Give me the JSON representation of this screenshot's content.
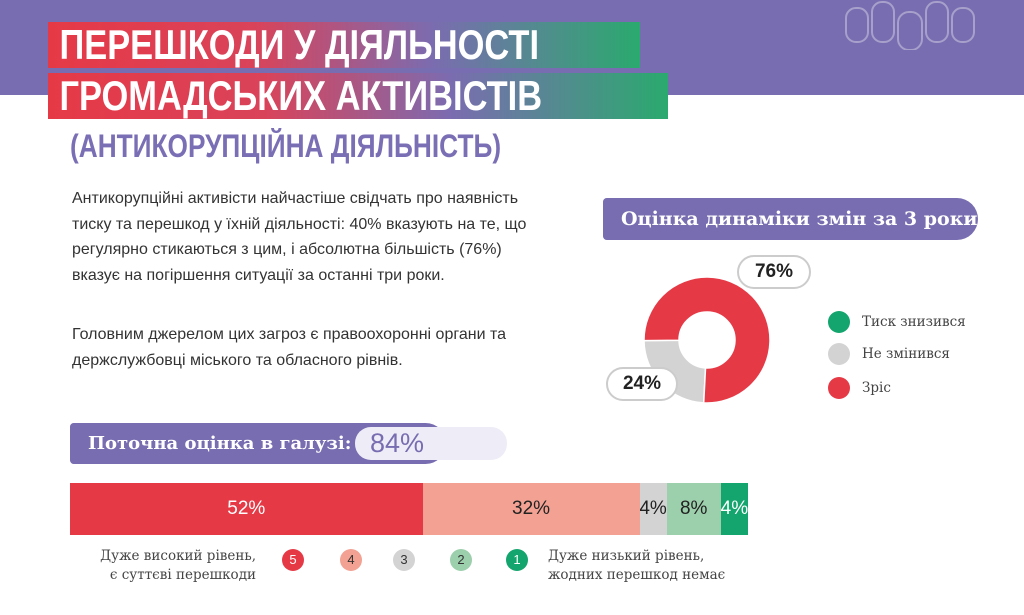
{
  "header": {
    "title_line1": "ПЕРЕШКОДИ У ДІЯЛЬНОСТІ",
    "title_line2": "ГРОМАДСЬКИХ АКТИВІСТІВ",
    "subtitle": "(АНТИКОРУПЦІЙНА ДІЯЛЬНІСТЬ)",
    "icon": "people-group-icon"
  },
  "text": {
    "p1": "Антикорупційні активісти найчастіше свідчать про наявність тиску та перешкод у їхній діяльності: 40% вказують на те, що регулярно стикаються з цим, і абсолютна більшість (76%) вказує на погіршення ситуації за останні три роки.",
    "p2": "Головним джерелом цих загроз є правоохоронні органи та держслужбовці міського та обласного рівнів."
  },
  "colors": {
    "purple": "#776db0",
    "red": "#e63946",
    "salmon": "#f2a193",
    "grey": "#d3d3d3",
    "lightgreen": "#9ccfac",
    "green": "#13a56d"
  },
  "chart_data": [
    {
      "type": "pie",
      "title": "Оцінка динаміки змін за 3 роки",
      "donut": true,
      "slices": [
        {
          "name": "Тиск знизився",
          "value": 0,
          "label": "",
          "color": "#13a56d"
        },
        {
          "name": "Не змінився",
          "value": 24,
          "label": "24%",
          "color": "#d3d3d3"
        },
        {
          "name": "Зріс",
          "value": 76,
          "label": "76%",
          "color": "#e63946"
        }
      ],
      "legend": "right"
    },
    {
      "type": "bar",
      "stacked": true,
      "orientation": "horizontal",
      "title": "Поточна оцінка в галузі:",
      "headline_value": "84%",
      "categories": [
        "5",
        "4",
        "3",
        "2",
        "1"
      ],
      "values": [
        52,
        32,
        4,
        8,
        4
      ],
      "labels": [
        "52%",
        "32%",
        "4%",
        "8%",
        "4%"
      ],
      "colors": [
        "#e63946",
        "#f2a193",
        "#d3d3d3",
        "#9ccfac",
        "#13a56d"
      ],
      "text_colors": [
        "#ffffff",
        "#222222",
        "#222222",
        "#222222",
        "#ffffff"
      ],
      "scale_left": "Дуже високий рівень, є суттєві перешкоди",
      "scale_left_1": "Дуже високий рівень,",
      "scale_left_2": "є суттєві перешкоди",
      "scale_right_1": "Дуже низький рівень,",
      "scale_right_2": "жодних перешкод немає"
    }
  ]
}
